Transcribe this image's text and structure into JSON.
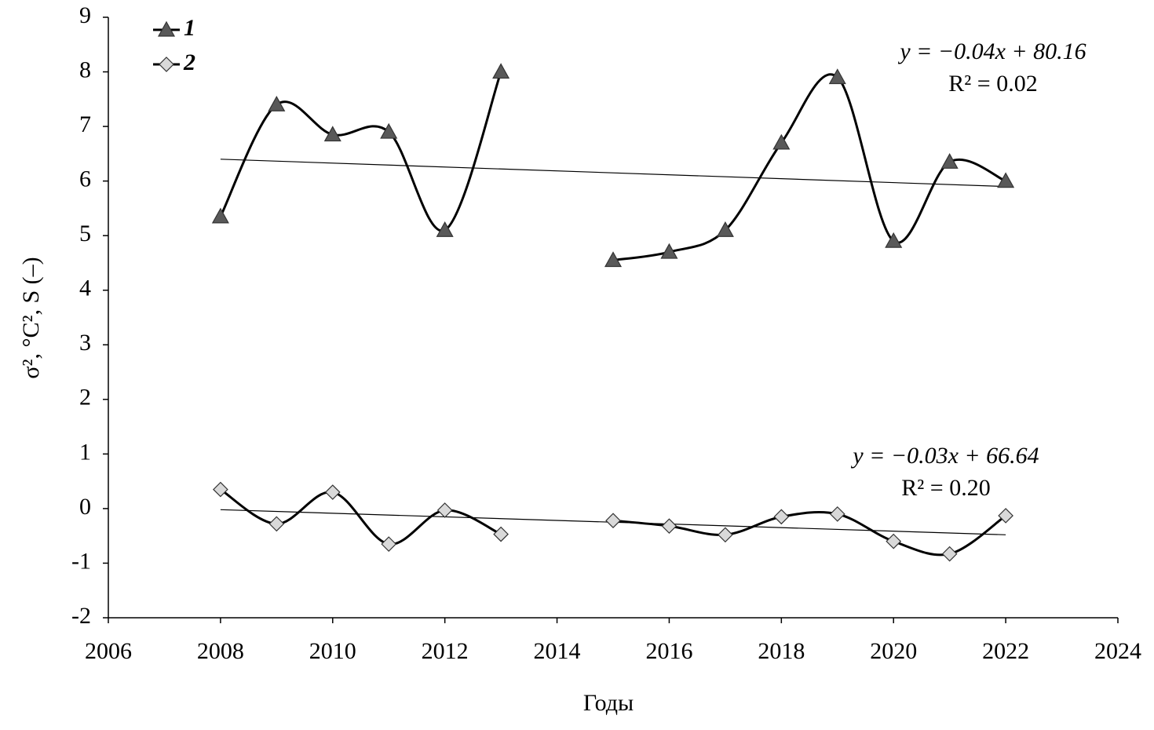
{
  "chart_data": {
    "type": "line",
    "x_label": "Годы",
    "y_label": "σ², °C², S (–)",
    "x": [
      2008,
      2009,
      2010,
      2011,
      2012,
      2013,
      2014,
      2015,
      2016,
      2017,
      2018,
      2019,
      2020,
      2021,
      2022
    ],
    "series": [
      {
        "name": "1",
        "color": "#595959",
        "marker": "triangle",
        "values": [
          5.35,
          7.4,
          6.85,
          6.9,
          5.1,
          8.0,
          null,
          4.55,
          4.7,
          5.1,
          6.7,
          7.9,
          4.9,
          6.35,
          6.0
        ],
        "trend": {
          "x": [
            2008,
            2022
          ],
          "values": [
            6.4,
            5.9
          ],
          "equation": "y = −0.04x + 80.16",
          "r2": "R² = 0.02"
        }
      },
      {
        "name": "2",
        "color": "#d9d9d9",
        "marker": "diamond",
        "values": [
          0.35,
          -0.28,
          0.3,
          -0.65,
          -0.03,
          -0.47,
          null,
          -0.22,
          -0.32,
          -0.48,
          -0.15,
          -0.1,
          -0.6,
          -0.83,
          -0.13
        ],
        "trend": {
          "x": [
            2008,
            2022
          ],
          "values": [
            -0.02,
            -0.48
          ],
          "equation": "y = −0.03x + 66.64",
          "r2": "R² = 0.20"
        }
      }
    ],
    "xlim": [
      2006,
      2024
    ],
    "xticks": [
      2006,
      2008,
      2010,
      2012,
      2014,
      2016,
      2018,
      2020,
      2022,
      2024
    ],
    "ylim": [
      -2,
      9
    ],
    "yticks": [
      -2,
      -1,
      0,
      1,
      2,
      3,
      4,
      5,
      6,
      7,
      8,
      9
    ],
    "smooth": true,
    "legend": "top-left"
  }
}
